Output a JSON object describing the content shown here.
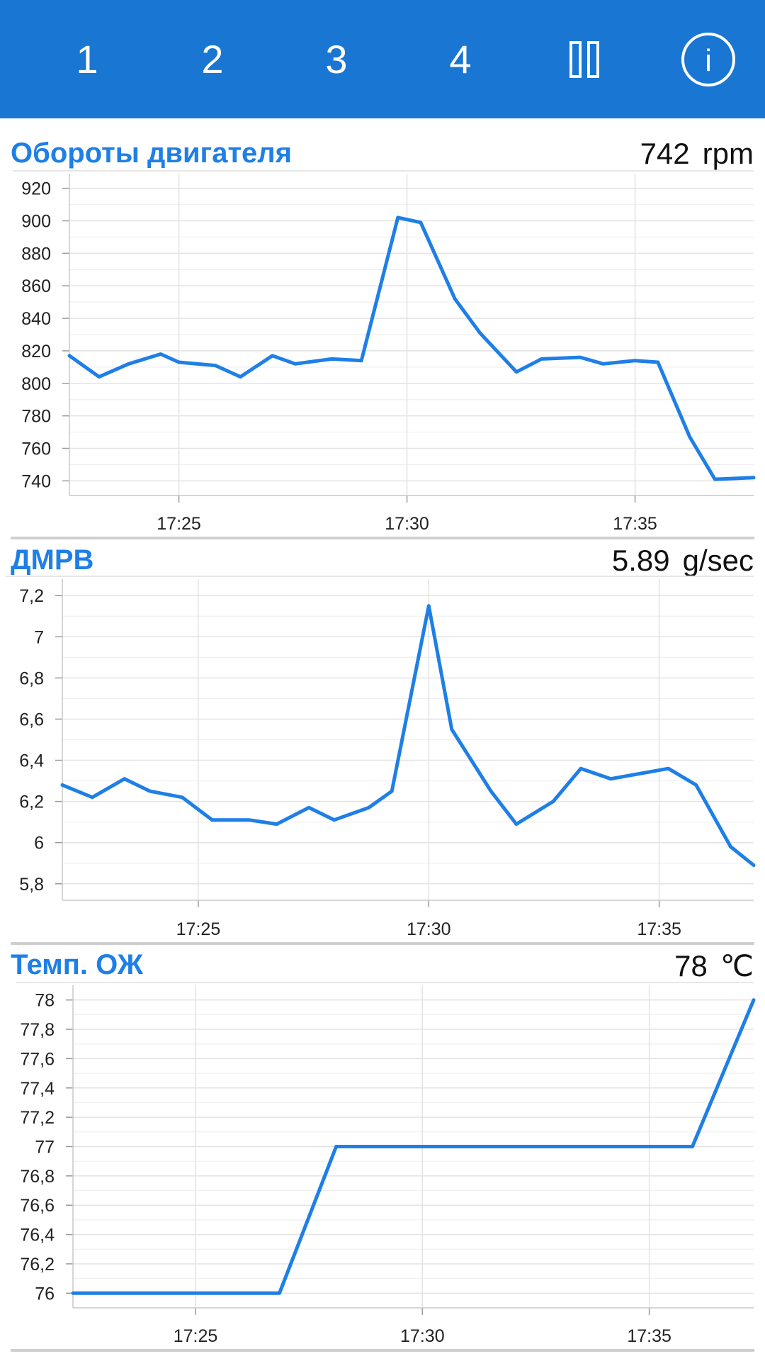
{
  "toolbar": {
    "tabs": [
      "1",
      "2",
      "3",
      "4"
    ],
    "pause_icon": "pause-icon",
    "info_icon": "info-icon",
    "info_glyph": "i",
    "colors": {
      "bar": "#1976d2",
      "icon": "#ffffff"
    }
  },
  "panels": [
    {
      "title": "Обороты двигателя",
      "value": "742",
      "unit": "rpm"
    },
    {
      "title": "ДМРВ",
      "value": "5.89",
      "unit": "g/sec"
    },
    {
      "title": "Темп. ОЖ",
      "value": "78",
      "unit": "℃"
    }
  ],
  "colors": {
    "line": "#1e7fe6",
    "title": "#1e7fe6",
    "grid": "#e3e3e3"
  },
  "chart_data": [
    {
      "type": "line",
      "title": "",
      "xlabel": "",
      "ylabel": "",
      "x_tick_labels": [
        "17:25",
        "17:30",
        "17:35"
      ],
      "x_tick_minutes": [
        25,
        30,
        35
      ],
      "xlim_minutes": [
        22.6,
        37.6
      ],
      "y_ticks": [
        740,
        760,
        780,
        800,
        820,
        840,
        860,
        880,
        900,
        920
      ],
      "y_tick_labels": [
        "740",
        "760",
        "780",
        "800",
        "820",
        "840",
        "860",
        "880",
        "900",
        "920"
      ],
      "ylim": [
        731,
        929
      ],
      "grid": true,
      "series": [
        {
          "x_minutes": [
            22.6,
            23.25,
            23.9,
            24.6,
            25.0,
            25.8,
            26.35,
            27.05,
            27.55,
            28.35,
            29.0,
            29.8,
            30.3,
            31.05,
            31.6,
            32.4,
            32.95,
            33.8,
            34.3,
            35.0,
            35.5,
            36.2,
            36.75,
            37.6
          ],
          "y": [
            817,
            804,
            812,
            818,
            813,
            811,
            804,
            817,
            812,
            815,
            814,
            902,
            899,
            852,
            831,
            807,
            815,
            816,
            812,
            814,
            813,
            767,
            741,
            742
          ]
        }
      ]
    },
    {
      "type": "line",
      "title": "",
      "xlabel": "",
      "ylabel": "",
      "x_tick_labels": [
        "17:25",
        "17:30",
        "17:35"
      ],
      "x_tick_minutes": [
        25,
        30,
        35
      ],
      "xlim_minutes": [
        22.05,
        37.05
      ],
      "y_ticks": [
        5.8,
        6.0,
        6.2,
        6.4,
        6.6,
        6.8,
        7.0,
        7.2
      ],
      "y_tick_labels": [
        "5,8",
        "6",
        "6,2",
        "6,4",
        "6,6",
        "6,8",
        "7",
        "7,2"
      ],
      "ylim": [
        5.72,
        7.28
      ],
      "grid": true,
      "series": [
        {
          "x_minutes": [
            22.05,
            22.7,
            23.4,
            23.95,
            24.65,
            25.3,
            26.1,
            26.7,
            27.4,
            27.95,
            28.7,
            29.2,
            30.0,
            30.5,
            31.35,
            31.9,
            32.7,
            33.3,
            33.95,
            35.2,
            35.8,
            36.55,
            37.05
          ],
          "y": [
            6.28,
            6.22,
            6.31,
            6.25,
            6.22,
            6.11,
            6.11,
            6.09,
            6.17,
            6.11,
            6.17,
            6.25,
            7.15,
            6.55,
            6.25,
            6.09,
            6.2,
            6.36,
            6.31,
            6.36,
            6.28,
            5.98,
            5.89
          ]
        }
      ]
    },
    {
      "type": "line",
      "title": "",
      "xlabel": "",
      "ylabel": "",
      "x_tick_labels": [
        "17:25",
        "17:30",
        "17:35"
      ],
      "x_tick_minutes": [
        25,
        30,
        35
      ],
      "xlim_minutes": [
        22.3,
        37.3
      ],
      "y_ticks": [
        76.0,
        76.2,
        76.4,
        76.6,
        76.8,
        77.0,
        77.2,
        77.4,
        77.6,
        77.8,
        78.0
      ],
      "y_tick_labels": [
        "76",
        "76,2",
        "76,4",
        "76,6",
        "76,8",
        "77",
        "77,2",
        "77,4",
        "77,6",
        "77,8",
        "78"
      ],
      "ylim": [
        75.9,
        78.1
      ],
      "grid": true,
      "series": [
        {
          "x_minutes": [
            22.3,
            26.85,
            28.1,
            35.95,
            37.3
          ],
          "y": [
            76,
            76,
            77,
            77,
            78
          ]
        }
      ]
    }
  ]
}
